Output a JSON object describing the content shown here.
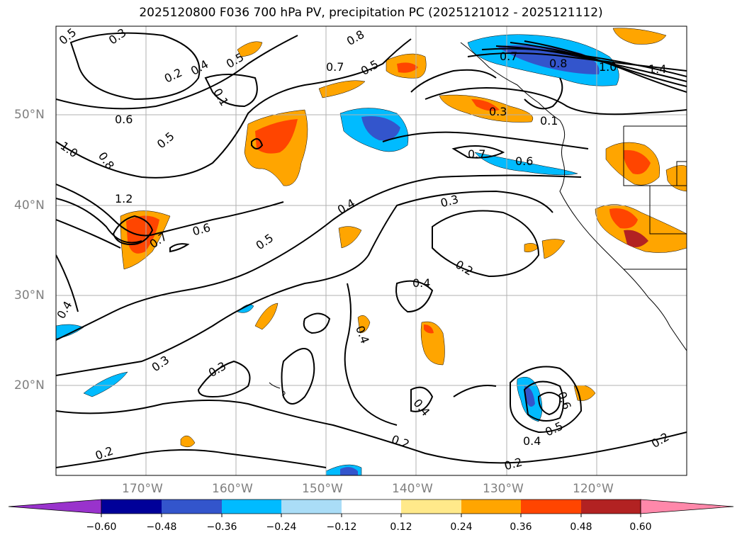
{
  "title": "2025120800 F036 700 hPa PV, precipitation PC (2025121012 - 2025121112)",
  "map": {
    "lon_range": [
      -180,
      -110
    ],
    "lat_range": [
      10,
      60
    ],
    "lat_ticks": [
      "50°N",
      "40°N",
      "30°N",
      "20°N"
    ],
    "lon_ticks": [
      "170°W",
      "160°W",
      "150°W",
      "140°W",
      "130°W",
      "120°W"
    ],
    "grid": true
  },
  "contour_labels": [
    "0.5",
    "0.3",
    "0.2",
    "0.4",
    "0.5",
    "0.8",
    "0.7",
    "0.5",
    "0.7",
    "0.8",
    "1.0",
    "1.4",
    "0.1",
    "0.6",
    "0.5",
    "1.0",
    "0.8",
    "0.3",
    "0.1",
    "0.7",
    "0.6",
    "1.2",
    "0.7",
    "0.6",
    "0.4",
    "0.3",
    "0.5",
    "0.2",
    "0.4",
    "0.4",
    "0.4",
    "0.3",
    "0.3",
    "0.6",
    "0.5",
    "0.4",
    "0.4",
    "0.2",
    "0.2",
    "0.2",
    "0.2"
  ],
  "colorbar": {
    "ticks": [
      "−0.60",
      "−0.48",
      "−0.36",
      "−0.24",
      "−0.12",
      "0.12",
      "0.24",
      "0.36",
      "0.48",
      "0.60"
    ],
    "colors": [
      "#9933cc",
      "#000099",
      "#3355cc",
      "#00bbff",
      "#aaddf7",
      "#ffffff",
      "#ffe98a",
      "#ffa500",
      "#ff4500",
      "#b22222",
      "#ff88aa"
    ]
  },
  "colors": {
    "coast": "#000000",
    "grid": "#b0b0b0",
    "contour": "#000000"
  }
}
